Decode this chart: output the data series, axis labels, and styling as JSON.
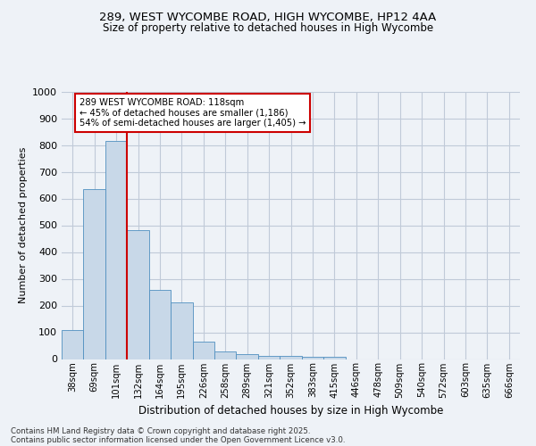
{
  "title1": "289, WEST WYCOMBE ROAD, HIGH WYCOMBE, HP12 4AA",
  "title2": "Size of property relative to detached houses in High Wycombe",
  "xlabel": "Distribution of detached houses by size in High Wycombe",
  "ylabel": "Number of detached properties",
  "categories": [
    "38sqm",
    "69sqm",
    "101sqm",
    "132sqm",
    "164sqm",
    "195sqm",
    "226sqm",
    "258sqm",
    "289sqm",
    "321sqm",
    "352sqm",
    "383sqm",
    "415sqm",
    "446sqm",
    "478sqm",
    "509sqm",
    "540sqm",
    "572sqm",
    "603sqm",
    "635sqm",
    "666sqm"
  ],
  "values": [
    110,
    635,
    815,
    483,
    258,
    213,
    65,
    27,
    19,
    12,
    12,
    8,
    8,
    0,
    0,
    0,
    0,
    0,
    0,
    0,
    0
  ],
  "bar_color": "#c8d8e8",
  "bar_edge_color": "#5090c0",
  "red_line_index": 2,
  "annotation_line1": "289 WEST WYCOMBE ROAD: 118sqm",
  "annotation_line2": "← 45% of detached houses are smaller (1,186)",
  "annotation_line3": "54% of semi-detached houses are larger (1,405) →",
  "annotation_box_color": "#ffffff",
  "annotation_box_edge_color": "#cc0000",
  "footnote1": "Contains HM Land Registry data © Crown copyright and database right 2025.",
  "footnote2": "Contains public sector information licensed under the Open Government Licence v3.0.",
  "bg_color": "#eef2f7",
  "plot_bg_color": "#eef2f7",
  "grid_color": "#c0cad8",
  "ylim": [
    0,
    1000
  ],
  "yticks": [
    0,
    100,
    200,
    300,
    400,
    500,
    600,
    700,
    800,
    900,
    1000
  ]
}
